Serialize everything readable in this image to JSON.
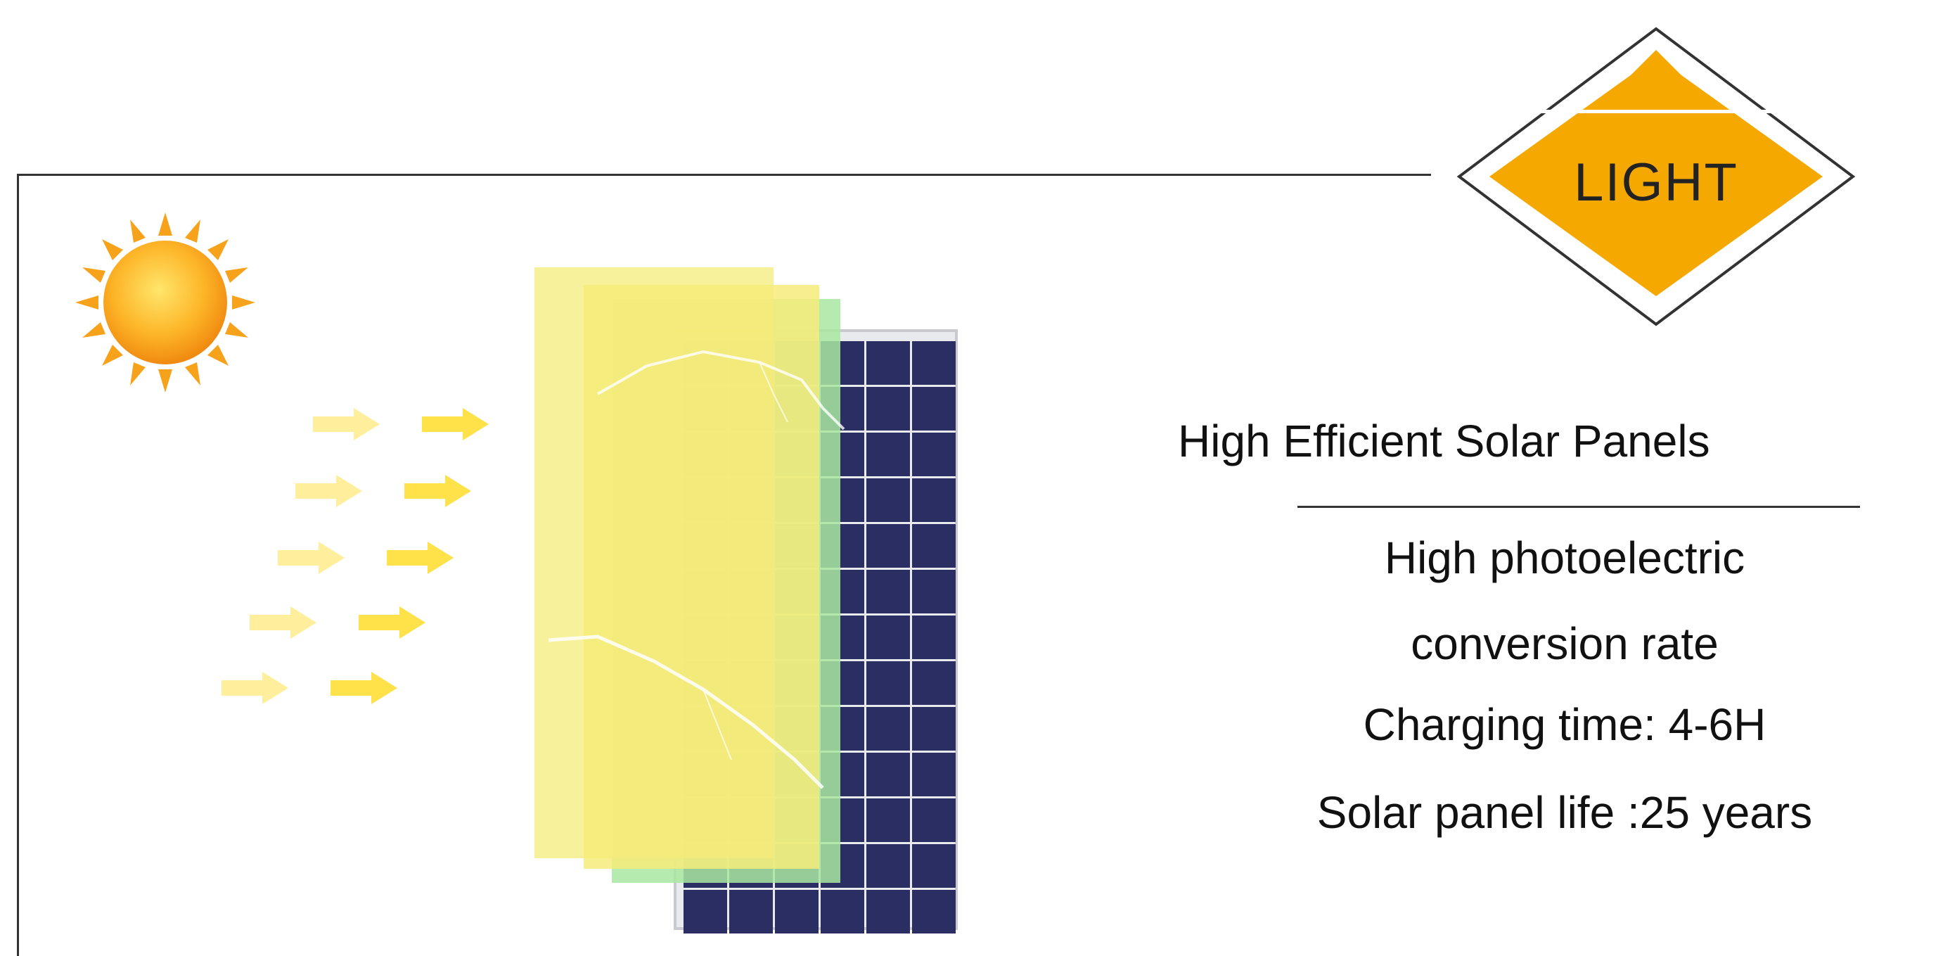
{
  "badge": {
    "label": "LIGHT"
  },
  "specs": {
    "title": "High Efficient Solar Panels",
    "lines": [
      "High photoelectric",
      "conversion rate",
      "Charging time: 4-6H",
      "Solar panel life :25 years"
    ]
  },
  "icons": {
    "sun": "sun-icon",
    "arrows": "arrow-right-icon",
    "panel": "solar-panel-icon",
    "badge": "diamond-sign-icon"
  },
  "colors": {
    "badge_fill": "#f5a800",
    "sun_fill": "#f7a21b",
    "arrow_fill": "#ffe14a",
    "panel_cell": "#2b2e63",
    "overlay_yellow": "#f6ec7a",
    "overlay_green": "#a8e8a0"
  }
}
